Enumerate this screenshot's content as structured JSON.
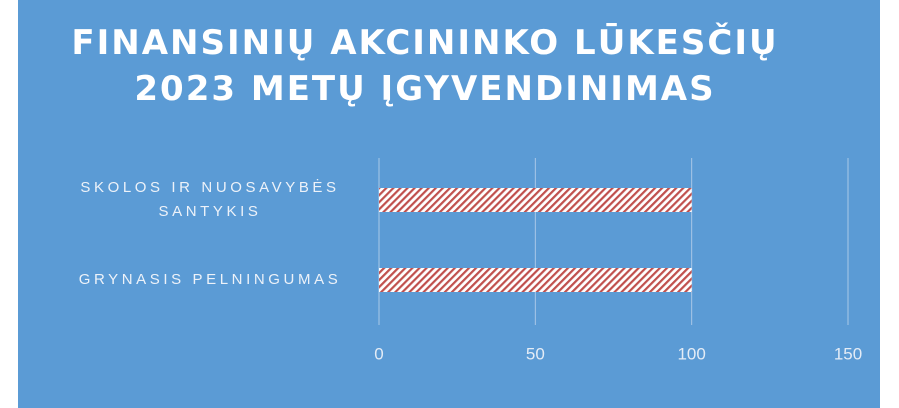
{
  "chart_data": {
    "type": "bar",
    "orientation": "horizontal",
    "title": "FINANSINIŲ AKCININKO LŪKESČIŲ 2023 METŲ ĮGYVENDINIMAS",
    "categories": [
      "SKOLOS IR NUOSAVYBĖS SANTYKIS",
      "GRYNASIS PELNINGUMAS"
    ],
    "values": [
      100,
      100
    ],
    "color": "#c0504d",
    "xlim": [
      0,
      150
    ],
    "xticks": [
      0,
      50,
      100,
      150
    ],
    "grid": true
  }
}
